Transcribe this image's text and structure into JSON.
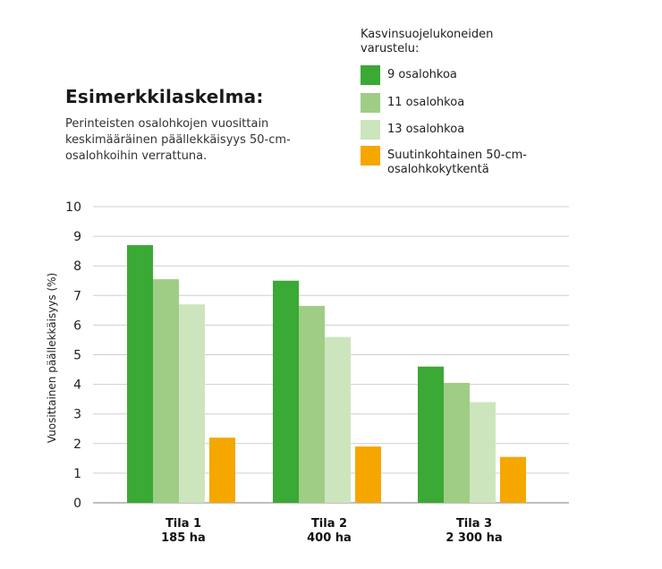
{
  "title": "Esimerkkilaskelma:",
  "subtitle": "Perinteisten osalohkojen vuosittain keskimääräinen päällekkäisyys 50-cm-osalohkoihin verrattuna.",
  "legend": {
    "title": "Kasvinsuojelukoneiden varustelu:",
    "items": [
      {
        "label": "9 osalohkoa",
        "color": "#3aa935"
      },
      {
        "label": "11 osalohkoa",
        "color": "#9fcd85"
      },
      {
        "label": "13 osalohkoa",
        "color": "#cde5bd"
      },
      {
        "label": "Suutinkohtainen 50-cm-osalohkokytkentä",
        "color": "#f5a700"
      }
    ]
  },
  "chart_data": {
    "type": "bar",
    "title": "",
    "xlabel": "",
    "ylabel": "Vuosittainen päällekkäisyys (%)",
    "ylim": [
      0,
      10
    ],
    "yticks": [
      0,
      1,
      2,
      3,
      4,
      5,
      6,
      7,
      8,
      9,
      10
    ],
    "grid": true,
    "legend_position": "top-right",
    "categories": [
      {
        "line1": "Tila 1",
        "line2": "185 ha"
      },
      {
        "line1": "Tila 2",
        "line2": "400 ha"
      },
      {
        "line1": "Tila 3",
        "line2": "2 300 ha"
      }
    ],
    "series": [
      {
        "name": "9 osalohkoa",
        "color": "#3aa935",
        "values": [
          8.7,
          7.5,
          4.6
        ]
      },
      {
        "name": "11 osalohkoa",
        "color": "#9fcd85",
        "values": [
          7.55,
          6.65,
          4.05
        ]
      },
      {
        "name": "13 osalohkoa",
        "color": "#cde5bd",
        "values": [
          6.7,
          5.6,
          3.4
        ]
      },
      {
        "name": "Suutinkohtainen 50-cm-osalohkokytkentä",
        "color": "#f5a700",
        "values": [
          2.2,
          1.9,
          1.55
        ]
      }
    ]
  }
}
